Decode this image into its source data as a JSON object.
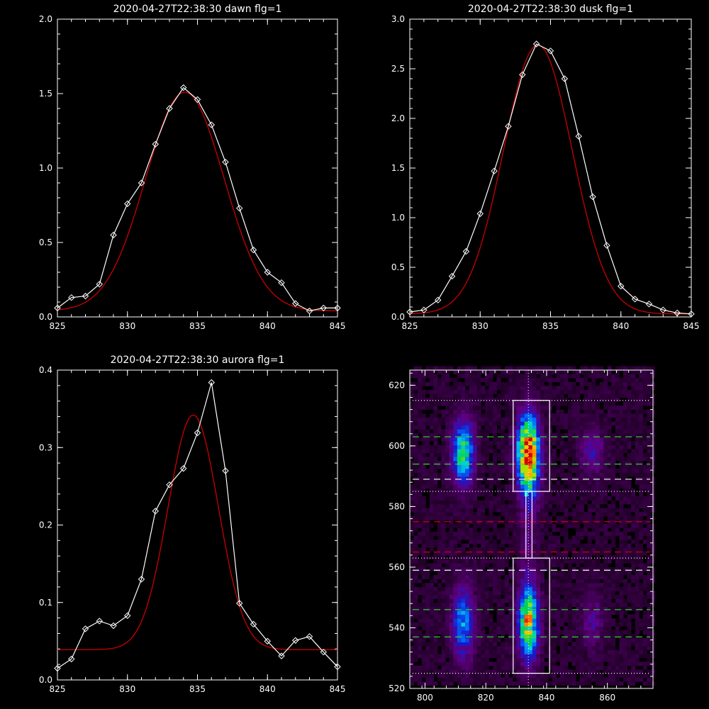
{
  "chart_data": [
    {
      "type": "line",
      "title": "2020-04-27T22:38:30 dawn flg=1",
      "xlim": [
        825,
        845
      ],
      "ylim": [
        0,
        2.0
      ],
      "xticks": [
        825,
        830,
        835,
        840,
        845
      ],
      "yticks": [
        0.0,
        0.5,
        1.0,
        1.5,
        2.0
      ],
      "ytick_labels": [
        "0.0",
        "0.5",
        "1.0",
        "1.5",
        "2.0"
      ],
      "series": [
        {
          "role": "data",
          "color": "#ffffff",
          "markers": "diamond",
          "x": [
            825,
            826,
            827,
            828,
            829,
            830,
            831,
            832,
            833,
            834,
            835,
            836,
            837,
            838,
            839,
            840,
            841,
            842,
            843,
            844,
            845
          ],
          "y": [
            0.06,
            0.13,
            0.14,
            0.22,
            0.55,
            0.76,
            0.9,
            1.16,
            1.4,
            1.54,
            1.46,
            1.29,
            1.04,
            0.73,
            0.45,
            0.3,
            0.23,
            0.09,
            0.04,
            0.06,
            0.06
          ]
        },
        {
          "role": "fit",
          "color": "#cc0000",
          "gaussian": {
            "amp": 1.47,
            "mu": 834.1,
            "sigma": 2.8,
            "base": 0.04
          }
        }
      ]
    },
    {
      "type": "line",
      "title": "2020-04-27T22:38:30 dusk flg=1",
      "xlim": [
        825,
        845
      ],
      "ylim": [
        0,
        3.0
      ],
      "xticks": [
        825,
        830,
        835,
        840,
        845
      ],
      "yticks": [
        0.0,
        0.5,
        1.0,
        1.5,
        2.0,
        2.5,
        3.0
      ],
      "ytick_labels": [
        "0.0",
        "0.5",
        "1.0",
        "1.5",
        "2.0",
        "2.5",
        "3.0"
      ],
      "series": [
        {
          "role": "data",
          "color": "#ffffff",
          "markers": "diamond",
          "x": [
            825,
            826,
            827,
            828,
            829,
            830,
            831,
            832,
            833,
            834,
            835,
            836,
            837,
            838,
            839,
            840,
            841,
            842,
            843,
            844,
            845
          ],
          "y": [
            0.05,
            0.07,
            0.17,
            0.41,
            0.66,
            1.04,
            1.47,
            1.92,
            2.44,
            2.75,
            2.68,
            2.4,
            1.82,
            1.21,
            0.72,
            0.31,
            0.18,
            0.13,
            0.07,
            0.04,
            0.03
          ]
        },
        {
          "role": "fit",
          "color": "#cc0000",
          "gaussian": {
            "amp": 2.71,
            "mu": 834.1,
            "sigma": 2.45,
            "base": 0.03
          }
        }
      ]
    },
    {
      "type": "line",
      "title": "2020-04-27T22:38:30 aurora flg=1",
      "xlim": [
        825,
        845
      ],
      "ylim": [
        0,
        0.4
      ],
      "xticks": [
        825,
        830,
        835,
        840,
        845
      ],
      "yticks": [
        0.0,
        0.1,
        0.2,
        0.3,
        0.4
      ],
      "ytick_labels": [
        "0.0",
        "0.1",
        "0.2",
        "0.3",
        "0.4"
      ],
      "series": [
        {
          "role": "data",
          "color": "#ffffff",
          "markers": "diamond",
          "x": [
            825,
            826,
            827,
            828,
            829,
            830,
            831,
            832,
            833,
            834,
            835,
            836,
            837,
            838,
            839,
            840,
            841,
            842,
            843,
            844,
            845
          ],
          "y": [
            0.015,
            0.027,
            0.066,
            0.076,
            0.07,
            0.083,
            0.13,
            0.218,
            0.252,
            0.273,
            0.319,
            0.384,
            0.27,
            0.099,
            0.072,
            0.05,
            0.031,
            0.051,
            0.056,
            0.036,
            0.017
          ]
        },
        {
          "role": "fit",
          "color": "#cc0000",
          "gaussian": {
            "amp": 0.303,
            "mu": 834.7,
            "sigma": 1.8,
            "base": 0.039
          }
        }
      ]
    },
    {
      "type": "heatmap",
      "title": "",
      "xlim": [
        795,
        875
      ],
      "ylim": [
        520,
        625
      ],
      "xticks": [
        800,
        820,
        840,
        860
      ],
      "yticks": [
        520,
        540,
        560,
        580,
        600,
        620
      ],
      "colormap": "rainbow",
      "blobs": [
        {
          "x": 834.0,
          "y": 597,
          "sx": 2.4,
          "sy": 8.5,
          "amp": 1.0
        },
        {
          "x": 834.0,
          "y": 542,
          "sx": 2.2,
          "sy": 8.0,
          "amp": 0.72
        },
        {
          "x": 834.0,
          "y": 570,
          "sx": 1.8,
          "sy": 12.0,
          "amp": 0.1
        },
        {
          "x": 812.5,
          "y": 598,
          "sx": 2.4,
          "sy": 7.0,
          "amp": 0.55
        },
        {
          "x": 812.5,
          "y": 542,
          "sx": 2.4,
          "sy": 8.0,
          "amp": 0.38
        },
        {
          "x": 855.0,
          "y": 598,
          "sx": 2.6,
          "sy": 5.0,
          "amp": 0.18
        },
        {
          "x": 855.0,
          "y": 542,
          "sx": 2.6,
          "sy": 6.0,
          "amp": 0.14
        }
      ],
      "boxes": [
        {
          "x0": 829,
          "x1": 841,
          "y0": 585,
          "y1": 615,
          "color": "#ffffff"
        },
        {
          "x0": 829,
          "x1": 841,
          "y0": 525,
          "y1": 563,
          "color": "#ffffff"
        }
      ],
      "hlines": [
        {
          "y": 615,
          "color": "#ffffff",
          "style": "dotted"
        },
        {
          "y": 603,
          "color": "#33dd33",
          "style": "dashed"
        },
        {
          "y": 594,
          "color": "#33dd33",
          "style": "dashed"
        },
        {
          "y": 589,
          "color": "#ffffff",
          "style": "dashed"
        },
        {
          "y": 585,
          "color": "#ffffff",
          "style": "dotted"
        },
        {
          "y": 575,
          "color": "#dd0000",
          "style": "dashed"
        },
        {
          "y": 565,
          "color": "#dd0000",
          "style": "dashed"
        },
        {
          "y": 563,
          "color": "#ffffff",
          "style": "dotted"
        },
        {
          "y": 559,
          "color": "#ffffff",
          "style": "dashed"
        },
        {
          "y": 546,
          "color": "#33dd33",
          "style": "dashed"
        },
        {
          "y": 537,
          "color": "#33dd33",
          "style": "dashed"
        },
        {
          "y": 525,
          "color": "#ffffff",
          "style": "dotted"
        }
      ],
      "vline": {
        "x": 834,
        "color": "#ffffff",
        "style": "dotted"
      },
      "connector": {
        "x0": 833.2,
        "x1": 835.2,
        "y0": 563,
        "y1": 585,
        "color": "#ffffff"
      }
    }
  ]
}
